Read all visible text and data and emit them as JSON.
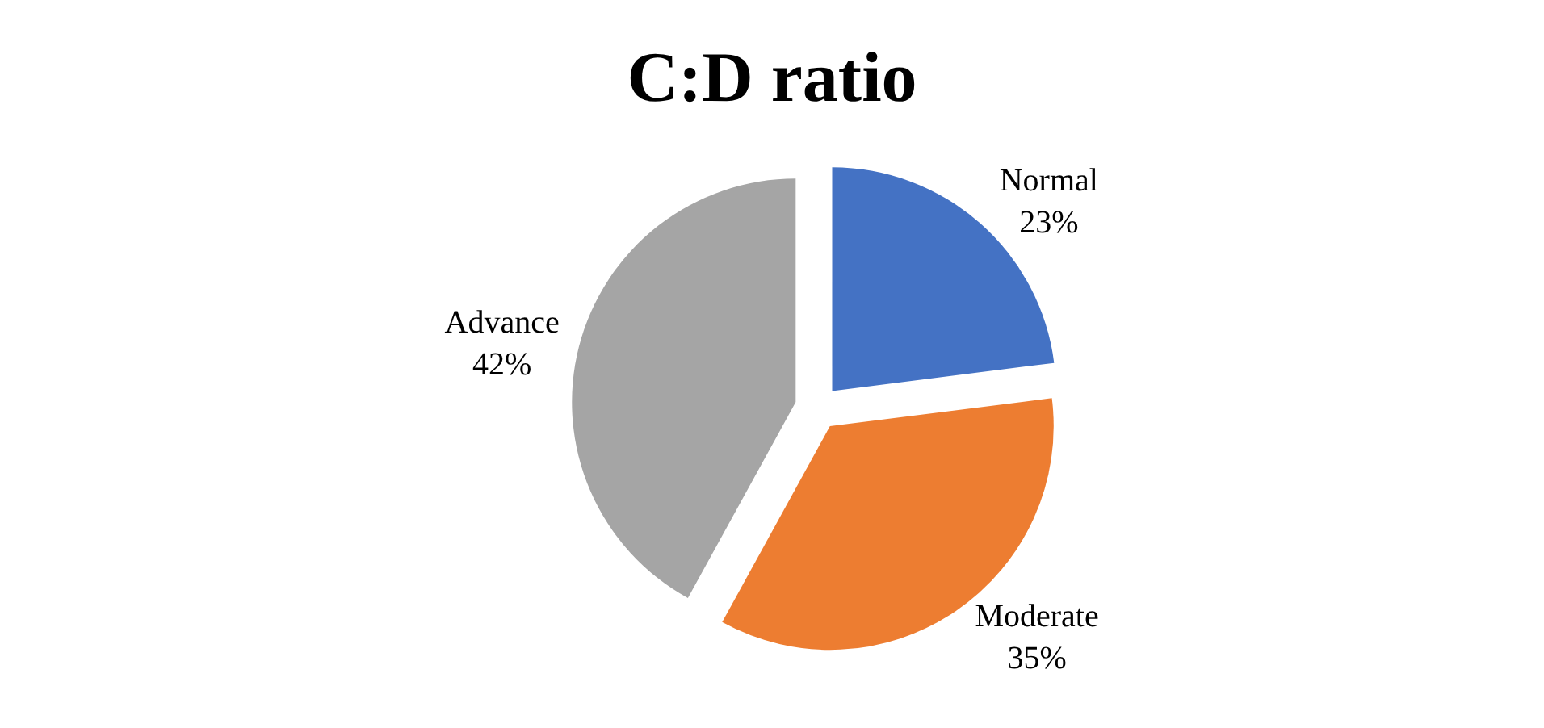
{
  "chart_data": {
    "type": "pie",
    "title": "C:D ratio",
    "categories": [
      "Normal",
      "Moderate",
      "Advance"
    ],
    "values": [
      23,
      35,
      42
    ],
    "value_labels": [
      "23%",
      "35%",
      "42%"
    ],
    "colors": [
      "#4472c4",
      "#ed7d31",
      "#a5a5a5"
    ],
    "legend": false
  }
}
